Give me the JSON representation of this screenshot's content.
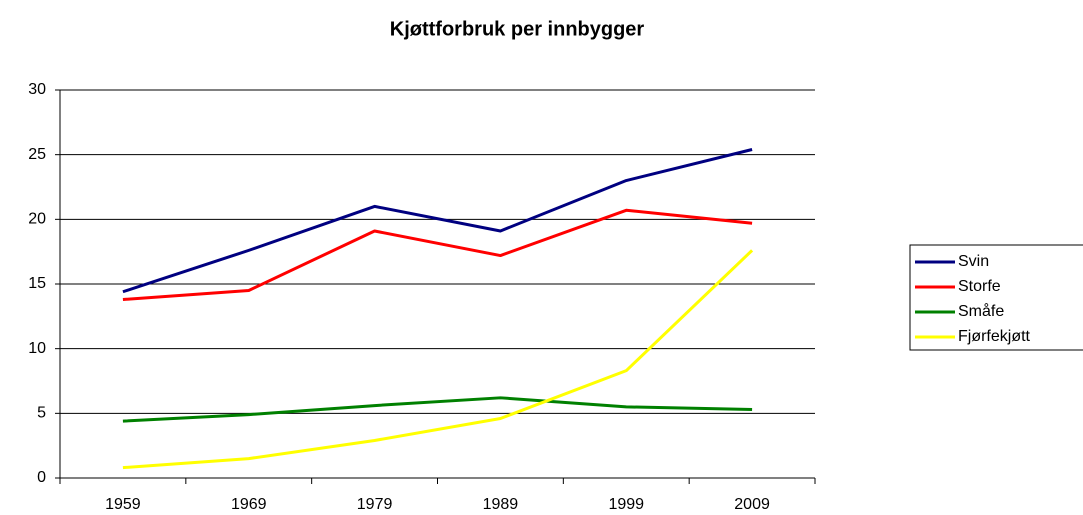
{
  "chart_data": {
    "type": "line",
    "title": "Kjøttforbruk per innbygger",
    "categories": [
      "1959",
      "1969",
      "1979",
      "1989",
      "1999",
      "2009"
    ],
    "series": [
      {
        "name": "Svin",
        "color": "#000080",
        "values": [
          14.4,
          17.6,
          21.0,
          19.1,
          23.0,
          25.4
        ]
      },
      {
        "name": "Storfe",
        "color": "#ff0000",
        "values": [
          13.8,
          14.5,
          19.1,
          17.2,
          20.7,
          19.7
        ]
      },
      {
        "name": "Småfe",
        "color": "#008000",
        "values": [
          4.4,
          4.9,
          5.6,
          6.2,
          5.5,
          5.3
        ]
      },
      {
        "name": "Fjørfekjøtt",
        "color": "#ffff00",
        "values": [
          0.8,
          1.5,
          2.9,
          4.6,
          8.3,
          17.6
        ]
      }
    ],
    "ylim": [
      0,
      30
    ],
    "yticks": [
      0,
      5,
      10,
      15,
      20,
      25,
      30
    ],
    "grid": true,
    "legend": "right"
  }
}
